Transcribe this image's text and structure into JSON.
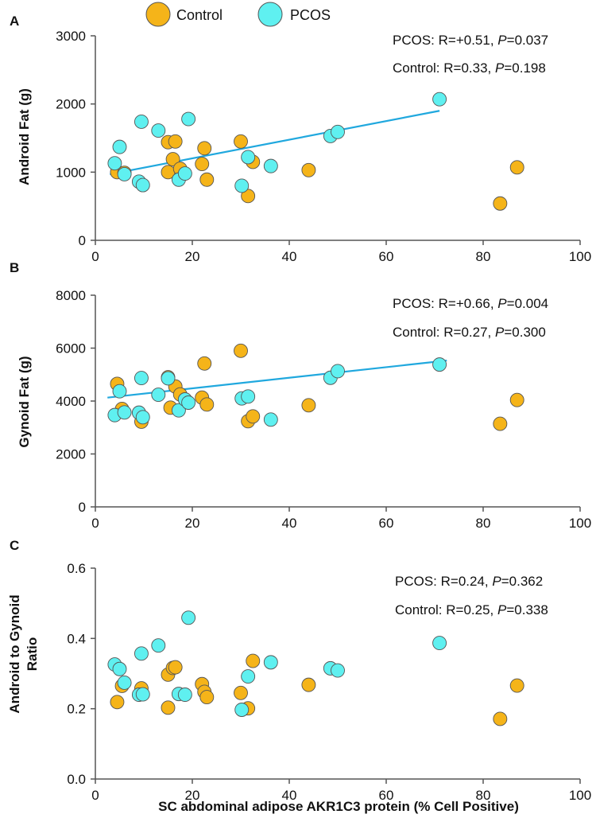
{
  "colors": {
    "control": "#F5B419",
    "pcos": "#5FF0F0",
    "fit": "#20A8DE",
    "axis": "#555555",
    "marker_edge": "#555555"
  },
  "legend": {
    "control_label": "Control",
    "pcos_label": "PCOS"
  },
  "xlabel": "SC abdominal adipose AKR1C3 protein (% Cell Positive)",
  "chart_data": [
    {
      "type": "scatter",
      "panel": "A",
      "ylabel": "Android Fat (g)",
      "xlim": [
        0,
        100
      ],
      "ylim": [
        0,
        3000
      ],
      "xticks": [
        0,
        20,
        40,
        60,
        80,
        100
      ],
      "yticks": [
        0,
        1000,
        2000,
        3000
      ],
      "stats": {
        "pcos": {
          "prefix": "PCOS: R=+0.51, ",
          "p": "P",
          "rest": "=0.037"
        },
        "control": {
          "prefix": "Control: R=0.33, ",
          "p": "P",
          "rest": "=0.198"
        }
      },
      "fit_line": {
        "series": "PCOS",
        "x": [
          3,
          71
        ],
        "y": [
          970,
          1900
        ]
      },
      "series": [
        {
          "name": "Control",
          "points": [
            [
              4.5,
              1000
            ],
            [
              6,
              990
            ],
            [
              15,
              1000
            ],
            [
              15,
              1440
            ],
            [
              16,
              1190
            ],
            [
              16.5,
              1450
            ],
            [
              17.5,
              1050
            ],
            [
              22,
              1120
            ],
            [
              22.5,
              1350
            ],
            [
              23,
              890
            ],
            [
              30,
              1450
            ],
            [
              31.5,
              650
            ],
            [
              32.5,
              1150
            ],
            [
              44,
              1030
            ],
            [
              83.5,
              540
            ],
            [
              87,
              1070
            ]
          ]
        },
        {
          "name": "PCOS",
          "points": [
            [
              4,
              1130
            ],
            [
              5,
              1370
            ],
            [
              6,
              970
            ],
            [
              9,
              860
            ],
            [
              9.5,
              1740
            ],
            [
              9.8,
              810
            ],
            [
              13,
              1610
            ],
            [
              17.2,
              890
            ],
            [
              18.5,
              980
            ],
            [
              19.2,
              1780
            ],
            [
              30.2,
              800
            ],
            [
              31.5,
              1220
            ],
            [
              36.2,
              1090
            ],
            [
              48.5,
              1530
            ],
            [
              50,
              1590
            ],
            [
              71,
              2070
            ]
          ]
        }
      ]
    },
    {
      "type": "scatter",
      "panel": "B",
      "ylabel": "Gynoid Fat (g)",
      "xlim": [
        0,
        100
      ],
      "ylim": [
        0,
        8000
      ],
      "xticks": [
        0,
        20,
        40,
        60,
        80,
        100
      ],
      "yticks": [
        0,
        2000,
        4000,
        6000,
        8000
      ],
      "stats": {
        "pcos": {
          "prefix": "PCOS: R=+0.66, ",
          "p": "P",
          "rest": "=0.004"
        },
        "control": {
          "prefix": "Control: R=0.27, ",
          "p": "P",
          "rest": "=0.300"
        }
      },
      "fit_line": {
        "series": "PCOS",
        "x": [
          2.5,
          72.5
        ],
        "y": [
          4130,
          5530
        ]
      },
      "series": [
        {
          "name": "Control",
          "points": [
            [
              4.5,
              4650
            ],
            [
              5.5,
              3700
            ],
            [
              9.5,
              3220
            ],
            [
              15,
              4900
            ],
            [
              15.5,
              3750
            ],
            [
              16.5,
              4550
            ],
            [
              17.5,
              4250
            ],
            [
              22,
              4130
            ],
            [
              22.5,
              5420
            ],
            [
              23,
              3870
            ],
            [
              30,
              5900
            ],
            [
              31.5,
              3240
            ],
            [
              32.5,
              3420
            ],
            [
              44,
              3840
            ],
            [
              83.5,
              3140
            ],
            [
              87,
              4040
            ]
          ]
        },
        {
          "name": "PCOS",
          "points": [
            [
              4,
              3470
            ],
            [
              5,
              4370
            ],
            [
              6,
              3570
            ],
            [
              9,
              3560
            ],
            [
              9.5,
              4870
            ],
            [
              9.8,
              3390
            ],
            [
              13,
              4240
            ],
            [
              15,
              4860
            ],
            [
              17.2,
              3650
            ],
            [
              18.5,
              4060
            ],
            [
              19.2,
              3940
            ],
            [
              30.2,
              4100
            ],
            [
              31.5,
              4170
            ],
            [
              36.2,
              3300
            ],
            [
              48.5,
              4880
            ],
            [
              50,
              5130
            ],
            [
              71,
              5380
            ]
          ]
        }
      ]
    },
    {
      "type": "scatter",
      "panel": "C",
      "ylabel": "Android to Gynoid Ratio",
      "ylabel_lines": [
        "Android to Gynoid",
        "Ratio"
      ],
      "xlim": [
        0,
        100
      ],
      "ylim": [
        0,
        0.6
      ],
      "xticks": [
        0,
        20,
        40,
        60,
        80,
        100
      ],
      "yticks": [
        0,
        0.2,
        0.4,
        0.6
      ],
      "stats": {
        "pcos": {
          "prefix": "PCOS: R=0.24, ",
          "p": "P",
          "rest": "=0.362"
        },
        "control": {
          "prefix": "Control: R=0.25, ",
          "p": "P",
          "rest": "=0.338"
        }
      },
      "series": [
        {
          "name": "Control",
          "points": [
            [
              4.5,
              0.219
            ],
            [
              5.5,
              0.265
            ],
            [
              9.5,
              0.258
            ],
            [
              15,
              0.203
            ],
            [
              15,
              0.297
            ],
            [
              16,
              0.316
            ],
            [
              16.5,
              0.318
            ],
            [
              22,
              0.27
            ],
            [
              22.5,
              0.248
            ],
            [
              23,
              0.233
            ],
            [
              30,
              0.245
            ],
            [
              31.5,
              0.201
            ],
            [
              32.5,
              0.336
            ],
            [
              44,
              0.268
            ],
            [
              83.5,
              0.171
            ],
            [
              87,
              0.266
            ]
          ]
        },
        {
          "name": "PCOS",
          "points": [
            [
              4,
              0.326
            ],
            [
              5,
              0.313
            ],
            [
              6,
              0.274
            ],
            [
              9,
              0.24
            ],
            [
              9.5,
              0.357
            ],
            [
              9.8,
              0.241
            ],
            [
              13,
              0.38
            ],
            [
              17.2,
              0.242
            ],
            [
              18.5,
              0.24
            ],
            [
              19.2,
              0.459
            ],
            [
              30.2,
              0.197
            ],
            [
              31.5,
              0.292
            ],
            [
              36.2,
              0.332
            ],
            [
              48.5,
              0.315
            ],
            [
              50,
              0.309
            ],
            [
              71,
              0.387
            ]
          ]
        }
      ]
    }
  ]
}
